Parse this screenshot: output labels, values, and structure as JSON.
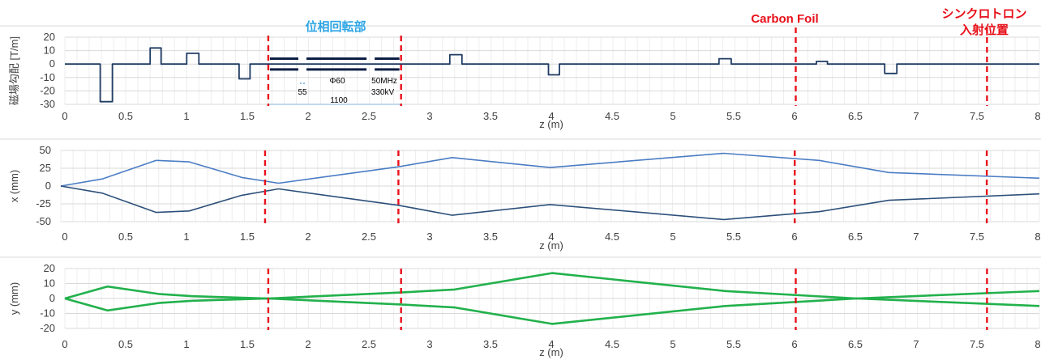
{
  "header": {
    "phase_label": "位相回転部",
    "carbon_label": "Carbon Foil",
    "sync_label_1": "シンクロトロン",
    "sync_label_2": "入射位置",
    "phase_color": "#2fa6e6",
    "marker_color": "#e8101a"
  },
  "annotations": {
    "gap": "55",
    "diameter": "Φ60",
    "freq": "50MHz",
    "voltage": "330kV",
    "length": "1100"
  },
  "chart_data": [
    {
      "type": "line",
      "name": "gradient",
      "ylabel": "磁場勾配 [T/m]",
      "xlabel": "z (m)",
      "xlim": [
        0,
        8
      ],
      "ylim": [
        -30,
        20
      ],
      "yticks": [
        20,
        10,
        0,
        -10,
        -20,
        -30
      ],
      "xticks": [
        "0",
        "0.5",
        "1",
        "1.5",
        "2",
        "2.5",
        "3",
        "3.5",
        "4",
        "4.5",
        "5",
        "5.5",
        "6",
        "6.5",
        "7",
        "7.5",
        "8"
      ],
      "color": "#1f3b63",
      "markers": [
        1.67,
        2.76,
        6.0,
        7.57
      ],
      "series": [
        {
          "values": [
            [
              0,
              0
            ],
            [
              0.29,
              0
            ],
            [
              0.29,
              -28
            ],
            [
              0.39,
              -28
            ],
            [
              0.39,
              0
            ],
            [
              0.7,
              0
            ],
            [
              0.7,
              12
            ],
            [
              0.79,
              12
            ],
            [
              0.79,
              0
            ],
            [
              1.0,
              0
            ],
            [
              1.0,
              8
            ],
            [
              1.1,
              8
            ],
            [
              1.1,
              0
            ],
            [
              1.43,
              0
            ],
            [
              1.43,
              -11
            ],
            [
              1.52,
              -11
            ],
            [
              1.52,
              0
            ],
            [
              3.16,
              0
            ],
            [
              3.16,
              7
            ],
            [
              3.26,
              7
            ],
            [
              3.26,
              0
            ],
            [
              3.97,
              0
            ],
            [
              3.97,
              -8
            ],
            [
              4.06,
              -8
            ],
            [
              4.06,
              0
            ],
            [
              5.37,
              0
            ],
            [
              5.37,
              4
            ],
            [
              5.47,
              4
            ],
            [
              5.47,
              0
            ],
            [
              6.17,
              0
            ],
            [
              6.17,
              2
            ],
            [
              6.26,
              2
            ],
            [
              6.26,
              0
            ],
            [
              6.73,
              0
            ],
            [
              6.73,
              -7
            ],
            [
              6.83,
              -7
            ],
            [
              6.83,
              0
            ],
            [
              8.0,
              0
            ]
          ]
        }
      ],
      "cavities": [
        [
          1.67,
          1.93
        ],
        [
          1.97,
          2.49
        ],
        [
          2.53,
          2.76
        ]
      ]
    },
    {
      "type": "line",
      "name": "x-envelope",
      "ylabel": "x (mm)",
      "xlabel": "z (m)",
      "xlim": [
        0,
        8
      ],
      "ylim": [
        -50,
        50
      ],
      "yticks": [
        50,
        25,
        0,
        -25,
        -50
      ],
      "xticks": [
        "0",
        "0.5",
        "1",
        "1.5",
        "2",
        "2.5",
        "3",
        "3.5",
        "4",
        "4.5",
        "5",
        "5.5",
        "6",
        "6.5",
        "7",
        "7.5",
        "8"
      ],
      "markers": [
        1.67,
        2.76,
        6.0,
        7.57
      ],
      "series": [
        {
          "color": "#4a7cc4",
          "values": [
            [
              0,
              0
            ],
            [
              0.34,
              10
            ],
            [
              0.78,
              36
            ],
            [
              1.05,
              34
            ],
            [
              1.48,
              12
            ],
            [
              1.78,
              4
            ],
            [
              2.76,
              27
            ],
            [
              3.2,
              40
            ],
            [
              4.0,
              26
            ],
            [
              5.42,
              46
            ],
            [
              6.2,
              36
            ],
            [
              6.77,
              19
            ],
            [
              8.0,
              11
            ]
          ]
        },
        {
          "color": "#2c4f7a",
          "values": [
            [
              0,
              0
            ],
            [
              0.34,
              -10
            ],
            [
              0.78,
              -37
            ],
            [
              1.05,
              -35
            ],
            [
              1.48,
              -13
            ],
            [
              1.78,
              -4
            ],
            [
              2.76,
              -27
            ],
            [
              3.2,
              -41
            ],
            [
              4.0,
              -26
            ],
            [
              5.42,
              -47
            ],
            [
              6.2,
              -36
            ],
            [
              6.77,
              -20
            ],
            [
              8.0,
              -11
            ]
          ]
        }
      ]
    },
    {
      "type": "line",
      "name": "y-envelope",
      "ylabel": "y (mm)",
      "xlabel": "z (m)",
      "xlim": [
        0,
        8
      ],
      "ylim": [
        -20,
        20
      ],
      "yticks": [
        20,
        10,
        0,
        -10,
        -20
      ],
      "xticks": [
        "0",
        "0.5",
        "1",
        "1.5",
        "2",
        "2.5",
        "3",
        "3.5",
        "4",
        "4.5",
        "5",
        "5.5",
        "6",
        "6.5",
        "7",
        "7.5",
        "8"
      ],
      "markers": [
        1.67,
        2.76,
        6.0,
        7.57
      ],
      "series": [
        {
          "color": "#22b14c",
          "values": [
            [
              0,
              0
            ],
            [
              0.35,
              8
            ],
            [
              0.77,
              3
            ],
            [
              1.05,
              1.5
            ],
            [
              1.67,
              0
            ],
            [
              2.76,
              4
            ],
            [
              3.2,
              6
            ],
            [
              4.0,
              17
            ],
            [
              5.42,
              5
            ],
            [
              6.5,
              0
            ],
            [
              8.0,
              5
            ]
          ]
        },
        {
          "color": "#22b14c",
          "values": [
            [
              0,
              0
            ],
            [
              0.35,
              -8
            ],
            [
              0.77,
              -3
            ],
            [
              1.05,
              -1.5
            ],
            [
              1.67,
              0
            ],
            [
              2.76,
              -4
            ],
            [
              3.2,
              -6
            ],
            [
              4.0,
              -17
            ],
            [
              5.42,
              -5
            ],
            [
              6.5,
              0
            ],
            [
              8.0,
              -5
            ]
          ]
        }
      ]
    }
  ]
}
